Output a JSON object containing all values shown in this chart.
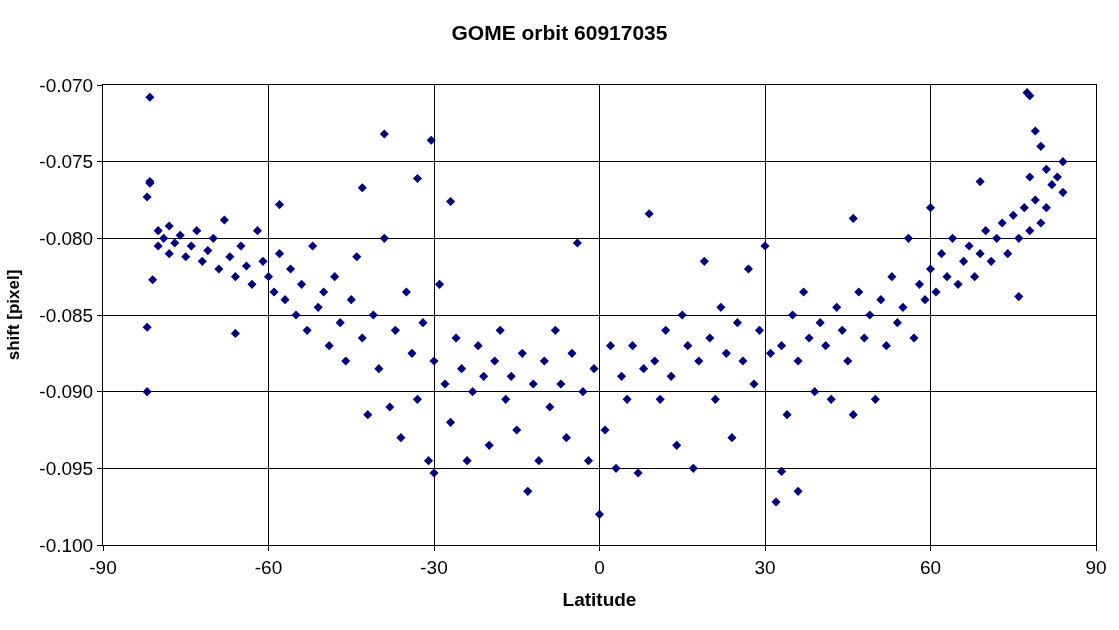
{
  "chart_data": {
    "type": "scatter",
    "title": "GOME orbit 60917035",
    "xlabel": "Latitude",
    "ylabel": "shift [pixel]",
    "xlim": [
      -90,
      90
    ],
    "xticks": [
      -90,
      -60,
      -30,
      0,
      30,
      60,
      90
    ],
    "ylim": [
      -0.1,
      -0.07
    ],
    "yticks": [
      {
        "value": -0.1,
        "label": "-0.100"
      },
      {
        "value": -0.095,
        "label": "-0.095"
      },
      {
        "value": -0.09,
        "label": "-0.090"
      },
      {
        "value": -0.085,
        "label": "-0.085"
      },
      {
        "value": -0.08,
        "label": "-0.080"
      },
      {
        "value": -0.075,
        "label": "-0.075"
      },
      {
        "value": -0.07,
        "label": "-0.070"
      }
    ],
    "grid": true,
    "marker": "diamond",
    "legend": false,
    "series": [
      {
        "color": "#000080",
        "x": [
          -81.5,
          -81.5,
          -81.5,
          -82,
          -81,
          -82,
          -82,
          -39,
          -30.5,
          -33,
          -27,
          -43,
          -58,
          9,
          -13,
          0,
          32,
          36,
          33,
          77.5,
          78,
          69,
          60,
          46,
          -80,
          -80,
          -79,
          -78,
          -78,
          -77,
          -76,
          -75,
          -74,
          -73,
          -72,
          -71,
          -70,
          -69,
          -68,
          -67,
          -66,
          -66,
          -65,
          -64,
          -63,
          -62,
          -61,
          -60,
          -59,
          -58,
          -57,
          -56,
          -55,
          -54,
          -53,
          -52,
          -51,
          -50,
          -49,
          -48,
          -47,
          -46,
          -45,
          -44,
          -43,
          -42,
          -41,
          -40,
          -39,
          -38,
          -37,
          -36,
          -35,
          -34,
          -33,
          -32,
          -31,
          -30,
          -30,
          -29,
          -28,
          -27,
          -26,
          -25,
          -24,
          -23,
          -22,
          -21,
          -20,
          -19,
          -18,
          -17,
          -16,
          -15,
          -14,
          -12,
          -11,
          -10,
          -9,
          -8,
          -7,
          -6,
          -5,
          -4,
          -3,
          -2,
          -1,
          1,
          2,
          3,
          4,
          5,
          6,
          7,
          8,
          10,
          11,
          12,
          13,
          14,
          15,
          16,
          17,
          18,
          19,
          20,
          21,
          22,
          23,
          24,
          25,
          26,
          27,
          28,
          29,
          30,
          31,
          33,
          34,
          35,
          36,
          37,
          38,
          39,
          40,
          41,
          42,
          43,
          44,
          45,
          46,
          47,
          48,
          49,
          50,
          51,
          52,
          53,
          54,
          55,
          56,
          57,
          58,
          59,
          60,
          61,
          62,
          63,
          64,
          65,
          66,
          67,
          68,
          69,
          70,
          71,
          72,
          73,
          74,
          75,
          76,
          76,
          77,
          78,
          78,
          79,
          79,
          80,
          80,
          81,
          81,
          82,
          83,
          84,
          84
        ],
        "values": [
          -0.0708,
          -0.0763,
          -0.0764,
          -0.0773,
          -0.0827,
          -0.0858,
          -0.09,
          -0.0732,
          -0.0736,
          -0.0761,
          -0.0776,
          -0.0767,
          -0.0778,
          -0.0784,
          -0.0965,
          -0.098,
          -0.0972,
          -0.0965,
          -0.0952,
          -0.0705,
          -0.0707,
          -0.0763,
          -0.078,
          -0.0787,
          -0.0795,
          -0.0805,
          -0.08,
          -0.0792,
          -0.081,
          -0.0803,
          -0.0798,
          -0.0812,
          -0.0805,
          -0.0795,
          -0.0815,
          -0.0808,
          -0.08,
          -0.082,
          -0.0788,
          -0.0812,
          -0.0825,
          -0.0862,
          -0.0805,
          -0.0818,
          -0.083,
          -0.0795,
          -0.0815,
          -0.0825,
          -0.0835,
          -0.081,
          -0.084,
          -0.082,
          -0.085,
          -0.083,
          -0.086,
          -0.0805,
          -0.0845,
          -0.0835,
          -0.087,
          -0.0825,
          -0.0855,
          -0.088,
          -0.084,
          -0.0812,
          -0.0865,
          -0.0915,
          -0.085,
          -0.0885,
          -0.08,
          -0.091,
          -0.086,
          -0.093,
          -0.0835,
          -0.0875,
          -0.0905,
          -0.0855,
          -0.0945,
          -0.088,
          -0.0953,
          -0.083,
          -0.0895,
          -0.092,
          -0.0865,
          -0.0885,
          -0.0945,
          -0.09,
          -0.087,
          -0.089,
          -0.0935,
          -0.088,
          -0.086,
          -0.0905,
          -0.089,
          -0.0925,
          -0.0875,
          -0.0895,
          -0.0945,
          -0.088,
          -0.091,
          -0.086,
          -0.0895,
          -0.093,
          -0.0875,
          -0.0803,
          -0.09,
          -0.0945,
          -0.0885,
          -0.0925,
          -0.087,
          -0.095,
          -0.089,
          -0.0905,
          -0.087,
          -0.0953,
          -0.0885,
          -0.088,
          -0.0905,
          -0.086,
          -0.089,
          -0.0935,
          -0.085,
          -0.087,
          -0.095,
          -0.088,
          -0.0815,
          -0.0865,
          -0.0905,
          -0.0845,
          -0.0875,
          -0.093,
          -0.0855,
          -0.088,
          -0.082,
          -0.0895,
          -0.086,
          -0.0805,
          -0.0875,
          -0.087,
          -0.0915,
          -0.085,
          -0.088,
          -0.0835,
          -0.0865,
          -0.09,
          -0.0855,
          -0.087,
          -0.0905,
          -0.0845,
          -0.086,
          -0.088,
          -0.0915,
          -0.0835,
          -0.0865,
          -0.085,
          -0.0905,
          -0.084,
          -0.087,
          -0.0825,
          -0.0855,
          -0.0845,
          -0.08,
          -0.0865,
          -0.083,
          -0.084,
          -0.082,
          -0.0835,
          -0.081,
          -0.0825,
          -0.08,
          -0.083,
          -0.0815,
          -0.0805,
          -0.0825,
          -0.081,
          -0.0795,
          -0.0815,
          -0.08,
          -0.079,
          -0.081,
          -0.0785,
          -0.08,
          -0.0838,
          -0.078,
          -0.076,
          -0.0795,
          -0.073,
          -0.0775,
          -0.074,
          -0.079,
          -0.0755,
          -0.078,
          -0.0765,
          -0.076,
          -0.075,
          -0.077
        ]
      }
    ]
  }
}
